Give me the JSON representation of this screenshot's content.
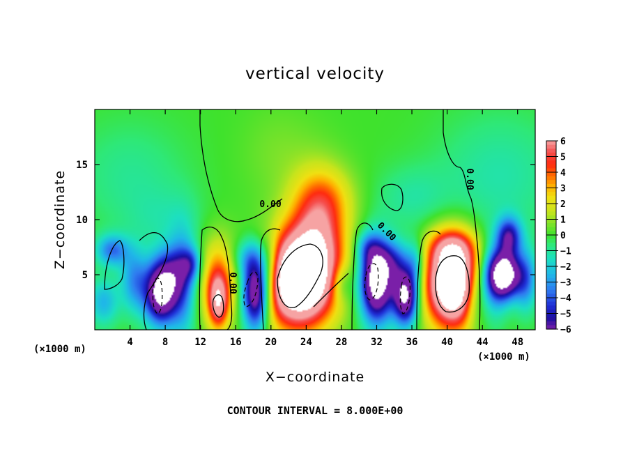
{
  "chart_data": {
    "type": "heatmap",
    "title": "vertical velocity",
    "xlabel": "X−coordinate",
    "ylabel": "Z−coordinate",
    "x_unit_left": "(×1000 m)",
    "x_unit_right": "(×1000 m)",
    "xlim": [
      0,
      50
    ],
    "ylim": [
      0,
      20
    ],
    "x_ticks": [
      4,
      8,
      12,
      16,
      20,
      24,
      28,
      32,
      36,
      40,
      44,
      48
    ],
    "y_ticks": [
      5,
      10,
      15
    ],
    "colorbar": {
      "ticks": [
        "6",
        "5",
        "4",
        "3",
        "2",
        "1",
        "0",
        "−1",
        "−2",
        "−3",
        "−4",
        "−5",
        "−6"
      ],
      "range": [
        -6,
        6
      ],
      "colors": [
        {
          "v": -6,
          "c": "#7a1fa8"
        },
        {
          "v": -5.3,
          "c": "#1a0ea0"
        },
        {
          "v": -4.5,
          "c": "#1f2ed6"
        },
        {
          "v": -3.5,
          "c": "#2f7df0"
        },
        {
          "v": -2.5,
          "c": "#1fb8e8"
        },
        {
          "v": -1.5,
          "c": "#1de0c0"
        },
        {
          "v": -0.6,
          "c": "#2ee878"
        },
        {
          "v": 0,
          "c": "#3fe22c"
        },
        {
          "v": 0.7,
          "c": "#7fe22a"
        },
        {
          "v": 1.5,
          "c": "#c8e41c"
        },
        {
          "v": 2.4,
          "c": "#f0e012"
        },
        {
          "v": 3.1,
          "c": "#ffb000"
        },
        {
          "v": 3.8,
          "c": "#ff6a00"
        },
        {
          "v": 4.5,
          "c": "#ff2a10"
        },
        {
          "v": 5.3,
          "c": "#f55050"
        },
        {
          "v": 6,
          "c": "#f6a3a3"
        }
      ]
    },
    "contour_labels": [
      "0.00",
      "0.00",
      "0.00",
      "0.00"
    ],
    "contour_interval_text": "CONTOUR INTERVAL = 8.000E+00",
    "features": [
      {
        "x": 7.5,
        "z": 3.2,
        "sx": 1.3,
        "sz": 1.9,
        "a": -8
      },
      {
        "x": 8.8,
        "z": 5.5,
        "sx": 1.6,
        "sz": 1.6,
        "a": -3
      },
      {
        "x": 10.0,
        "z": 4.0,
        "sx": 1.1,
        "sz": 3.5,
        "a": -3
      },
      {
        "x": 11.0,
        "z": 6.0,
        "sx": 0.8,
        "sz": 1.0,
        "a": -2.5
      },
      {
        "x": 4.5,
        "z": 4.5,
        "sx": 1.1,
        "sz": 2.0,
        "a": -3
      },
      {
        "x": 2.0,
        "z": 7.2,
        "sx": 1.3,
        "sz": 1.0,
        "a": -3.5
      },
      {
        "x": 1.0,
        "z": 2.5,
        "sx": 1.2,
        "sz": 1.5,
        "a": -2.5
      },
      {
        "x": 14.0,
        "z": 4.0,
        "sx": 1.4,
        "sz": 2.8,
        "a": 4.5
      },
      {
        "x": 14.0,
        "z": 2.5,
        "sx": 0.7,
        "sz": 1.5,
        "a": 4
      },
      {
        "x": 18.3,
        "z": 3.5,
        "sx": 1.1,
        "sz": 2.4,
        "a": -9
      },
      {
        "x": 17.5,
        "z": 6.5,
        "sx": 1.4,
        "sz": 1.2,
        "a": -2
      },
      {
        "x": 20.0,
        "z": 6.0,
        "sx": 0.8,
        "sz": 2.0,
        "a": -2
      },
      {
        "x": 23.0,
        "z": 4.5,
        "sx": 2.8,
        "sz": 3.0,
        "a": 11
      },
      {
        "x": 25.5,
        "z": 8.5,
        "sx": 2.2,
        "sz": 3.6,
        "a": 4.5
      },
      {
        "x": 26.0,
        "z": 12.0,
        "sx": 2.5,
        "sz": 2.0,
        "a": 1.8
      },
      {
        "x": 28.0,
        "z": 4.2,
        "sx": 0.9,
        "sz": 1.2,
        "a": -2
      },
      {
        "x": 32.0,
        "z": 4.3,
        "sx": 1.3,
        "sz": 2.5,
        "a": -9
      },
      {
        "x": 35.3,
        "z": 3.0,
        "sx": 1.0,
        "sz": 1.8,
        "a": -8
      },
      {
        "x": 34.0,
        "z": 6.2,
        "sx": 1.5,
        "sz": 1.4,
        "a": -3
      },
      {
        "x": 31.0,
        "z": 7.5,
        "sx": 1.0,
        "sz": 1.0,
        "a": -2
      },
      {
        "x": 36.5,
        "z": 6.0,
        "sx": 0.7,
        "sz": 1.5,
        "a": -2
      },
      {
        "x": 40.7,
        "z": 4.2,
        "sx": 2.2,
        "sz": 2.8,
        "a": 11
      },
      {
        "x": 40.5,
        "z": 7.5,
        "sx": 1.8,
        "sz": 1.2,
        "a": 3
      },
      {
        "x": 46.5,
        "z": 5.0,
        "sx": 1.3,
        "sz": 1.5,
        "a": -9
      },
      {
        "x": 47.0,
        "z": 8.5,
        "sx": 1.0,
        "sz": 1.2,
        "a": -5
      },
      {
        "x": 45.0,
        "z": 4.0,
        "sx": 1.2,
        "sz": 2.5,
        "a": -3
      },
      {
        "x": 49.0,
        "z": 4.5,
        "sx": 0.9,
        "sz": 2.0,
        "a": -3
      },
      {
        "x": 43.0,
        "z": 3.0,
        "sx": 0.9,
        "sz": 2.0,
        "a": -2.5
      },
      {
        "x": 4.0,
        "z": 14.0,
        "sx": 4.5,
        "sz": 3.5,
        "a": -0.9
      },
      {
        "x": 8.0,
        "z": 10.0,
        "sx": 3.0,
        "sz": 2.0,
        "a": -0.8
      },
      {
        "x": 46.0,
        "z": 14.0,
        "sx": 5.0,
        "sz": 4.0,
        "a": -1.2
      },
      {
        "x": 36.0,
        "z": 12.0,
        "sx": 3.0,
        "sz": 2.0,
        "a": -1.0
      },
      {
        "x": 21.0,
        "z": 16.0,
        "sx": 3.0,
        "sz": 3.0,
        "a": 0.6
      }
    ]
  }
}
